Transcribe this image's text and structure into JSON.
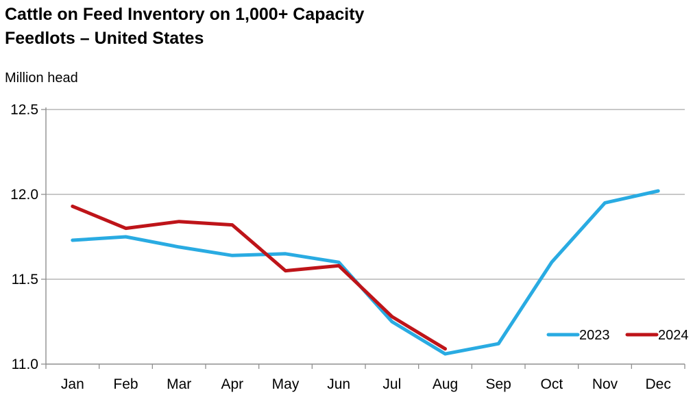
{
  "header": {
    "title_lines": [
      "Cattle on Feed Inventory on 1,000+ Capacity",
      "Feedlots – United States"
    ],
    "unit_label": "Million head"
  },
  "chart_data": {
    "type": "line",
    "title": "Cattle on Feed Inventory on 1,000+ Capacity Feedlots – United States",
    "subtitle": "",
    "ylabel": "Million head",
    "xlabel": "",
    "categories": [
      "Jan",
      "Feb",
      "Mar",
      "Apr",
      "May",
      "Jun",
      "Jul",
      "Aug",
      "Sep",
      "Oct",
      "Nov",
      "Dec"
    ],
    "series": [
      {
        "name": "2023",
        "color": "#29ABE2",
        "values": [
          11.73,
          11.75,
          11.69,
          11.64,
          11.65,
          11.6,
          11.25,
          11.06,
          11.12,
          11.6,
          11.95,
          12.02
        ]
      },
      {
        "name": "2024",
        "color": "#BE1419",
        "values": [
          11.93,
          11.8,
          11.84,
          11.82,
          11.55,
          11.58,
          11.28,
          11.09
        ]
      }
    ],
    "ylim": [
      11.0,
      12.5
    ],
    "y_tick_step": 0.5,
    "y_tick_labels": [
      "11.0",
      "11.5",
      "12.0",
      "12.5"
    ],
    "grid": true,
    "legend_position": "bottom-right",
    "colors": {
      "grid": "#A6A6A6",
      "axis": "#8F8F8F",
      "text": "#000000"
    }
  }
}
